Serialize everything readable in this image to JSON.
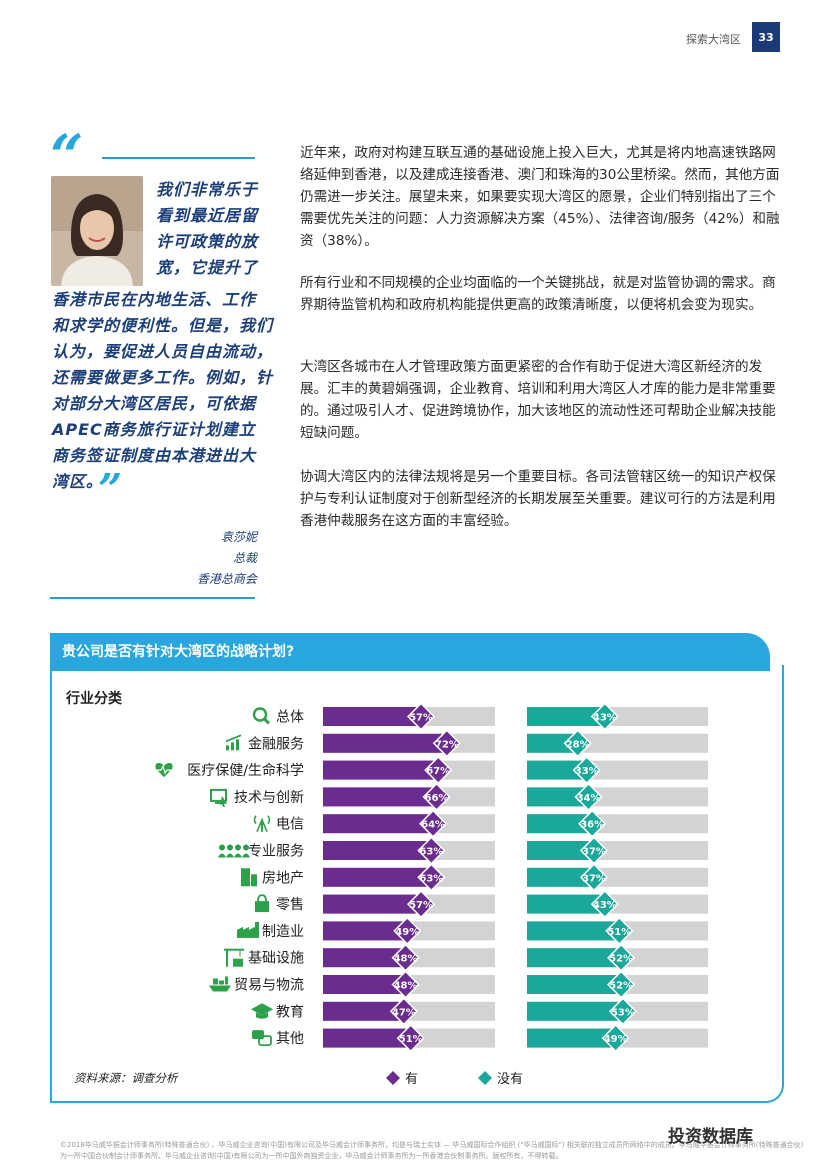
{
  "header": {
    "section": "探索大湾区",
    "page_number": "33"
  },
  "quote": {
    "lines": [
      "我们非常乐于",
      "看到最近居留",
      "许可政策的放",
      "宽，它提升了",
      "香港市民在内地生活、工作",
      "和求学的便利性。但是，我们",
      "认为，要促进人员自由流动，",
      "还需要做更多工作。例如，针",
      "对部分大湾区居民，可依据",
      "APEC商务旅行证计划建立",
      "商务签证制度由本港进出大",
      "湾区。"
    ],
    "name": "袁莎妮",
    "title": "总裁",
    "org": "香港总商会"
  },
  "body": {
    "paragraphs": [
      "近年来，政府对构建互联互通的基础设施上投入巨大，尤其是将内地高速铁路网络延伸到香港，以及建成连接香港、澳门和珠海的30公里桥梁。然而，其他方面仍需进一步关注。展望未来，如果要实现大湾区的愿景，企业们特别指出了三个需要优先关注的问题：人力资源解决方案（45%）、法律咨询/服务（42%）和融资（38%）。",
      "所有行业和不同规模的企业均面临的一个关键挑战，就是对监管协调的需求。商界期待监管机构和政府机构能提供更高的政策清晰度，以便将机会变为现实。",
      "大湾区各城市在人才管理政策方面更紧密的合作有助于促进大湾区新经济的发展。汇丰的黄碧娟强调，企业教育、培训和利用大湾区人才库的能力是非常重要的。通过吸引人才、促进跨境协作，加大该地区的流动性还可帮助企业解决技能短缺问题。",
      "协调大湾区内的法律法规将是另一个重要目标。各司法管辖区统一的知识产权保护与专利认证制度对于创新型经济的长期发展至关重要。建议可行的方法是利用香港仲裁服务在这方面的丰富经验。"
    ]
  },
  "chart_data": {
    "type": "bar",
    "title": "贵公司是否有针对大湾区的战略计划?",
    "axis_heading": "行业分类",
    "categories": [
      "总体",
      "金融服务",
      "医疗保健/生命科学",
      "技术与创新",
      "电信",
      "专业服务",
      "房地产",
      "零售",
      "制造业",
      "基础设施",
      "贸易与物流",
      "教育",
      "其他"
    ],
    "icons": [
      "magnifier-icon",
      "growth-chart-icon",
      "heartbeat-icon",
      "monitor-touch-icon",
      "antenna-icon",
      "people-group-icon",
      "building-icon",
      "shopping-bag-icon",
      "factory-icon",
      "crane-icon",
      "cargo-ship-icon",
      "graduation-cap-icon",
      "chat-bubbles-icon"
    ],
    "series": [
      {
        "name": "有",
        "color": "#6a2c8e",
        "values": [
          57,
          72,
          67,
          66,
          64,
          63,
          63,
          57,
          49,
          48,
          48,
          47,
          51
        ]
      },
      {
        "name": "没有",
        "color": "#1aa89a",
        "values": [
          43,
          28,
          33,
          34,
          36,
          37,
          37,
          43,
          51,
          52,
          52,
          53,
          49
        ]
      }
    ],
    "ylim": [
      0,
      100
    ],
    "track_color": "#d3d3d3",
    "icon_color": "#2da14a",
    "legend_position": "bottom",
    "source": "资料来源：调查分析"
  },
  "footer": {
    "line1": "©2018毕马威华振会计师事务所(特殊普通合伙) 、毕马威企业咨询(中国)有限公司及毕马威会计师事务所，均是与瑞士实体 — 毕马威国际合作组织 (\"毕马威国际\") 相关联的独立成员所网络中的成员。毕马威华振会计师事务所(特殊普通合伙)",
    "line2": "为一所中国合伙制会计师事务所，毕马威企业咨询(中国)有限公司为一所中国外商独资企业，毕马威会计师事务所为一所香港合伙制事务所。版权所有，不得转载。",
    "watermark": "投资数据库"
  }
}
